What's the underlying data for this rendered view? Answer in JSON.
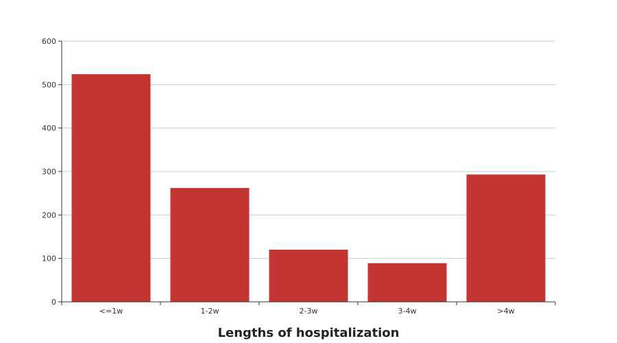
{
  "chart_data": {
    "type": "bar",
    "title": "",
    "xlabel": "Lengths of hospitalization",
    "ylabel": "",
    "categories": [
      "<=1w",
      "1-2w",
      "2-3w",
      "3-4w",
      ">4w"
    ],
    "values": [
      524,
      262,
      120,
      89,
      293
    ],
    "ylim": [
      0,
      600
    ],
    "yticks": [
      0,
      100,
      200,
      300,
      400,
      500,
      600
    ],
    "grid": true,
    "legend": "none"
  },
  "colors": {
    "bar": "#c23531",
    "grid": "#cccccc",
    "axis": "#333333"
  }
}
